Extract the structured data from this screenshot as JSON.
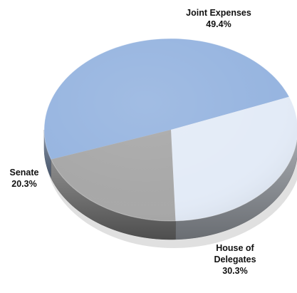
{
  "chart_data": {
    "type": "pie",
    "title": "",
    "slices": [
      {
        "label_lines": [
          "Joint Expenses"
        ],
        "percent_text": "49.4%",
        "value": 49.4,
        "color": "#97b5e0"
      },
      {
        "label_lines": [
          "House of",
          "Delegates"
        ],
        "percent_text": "30.3%",
        "value": 30.3,
        "color": "#e3ebf7"
      },
      {
        "label_lines": [
          "Senate"
        ],
        "percent_text": "20.3%",
        "value": 20.3,
        "color": "#a8a8a8"
      }
    ],
    "legend": "none",
    "style": "3d"
  }
}
